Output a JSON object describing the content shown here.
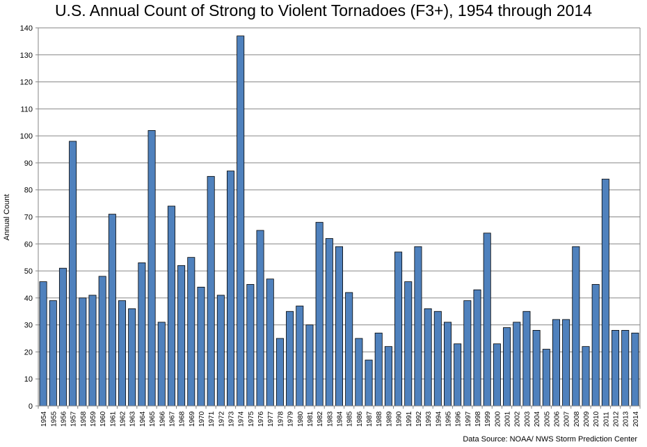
{
  "chart_data": {
    "type": "bar",
    "title": "U.S. Annual Count of Strong to Violent Tornadoes (F3+), 1954 through 2014",
    "xlabel": "",
    "ylabel": "Annual Count",
    "ylim": [
      0,
      140
    ],
    "yticks": [
      0,
      10,
      20,
      30,
      40,
      50,
      60,
      70,
      80,
      90,
      100,
      110,
      120,
      130,
      140
    ],
    "grid": true,
    "bar_color": "#4F81BD",
    "bar_stroke": "#000000",
    "categories": [
      "1954",
      "1955",
      "1956",
      "1957",
      "1958",
      "1959",
      "1960",
      "1961",
      "1962",
      "1963",
      "1964",
      "1965",
      "1966",
      "1967",
      "1968",
      "1969",
      "1970",
      "1971",
      "1972",
      "1973",
      "1974",
      "1975",
      "1976",
      "1977",
      "1978",
      "1979",
      "1980",
      "1981",
      "1982",
      "1983",
      "1984",
      "1985",
      "1986",
      "1987",
      "1988",
      "1989",
      "1990",
      "1991",
      "1992",
      "1993",
      "1994",
      "1995",
      "1996",
      "1997",
      "1998",
      "1999",
      "2000",
      "2001",
      "2002",
      "2003",
      "2004",
      "2005",
      "2006",
      "2007",
      "2008",
      "2009",
      "2010",
      "2011",
      "2012",
      "2013",
      "2014"
    ],
    "values": [
      46,
      39,
      51,
      98,
      40,
      41,
      48,
      71,
      39,
      36,
      53,
      102,
      31,
      74,
      52,
      55,
      44,
      85,
      41,
      87,
      137,
      45,
      65,
      47,
      25,
      35,
      37,
      30,
      68,
      62,
      59,
      42,
      25,
      17,
      27,
      22,
      57,
      46,
      59,
      36,
      35,
      31,
      23,
      39,
      43,
      64,
      23,
      29,
      31,
      35,
      28,
      21,
      32,
      32,
      59,
      22,
      45,
      84,
      28,
      28,
      27
    ],
    "source": "Data Source: NOAA/ NWS Storm Prediction Center"
  }
}
